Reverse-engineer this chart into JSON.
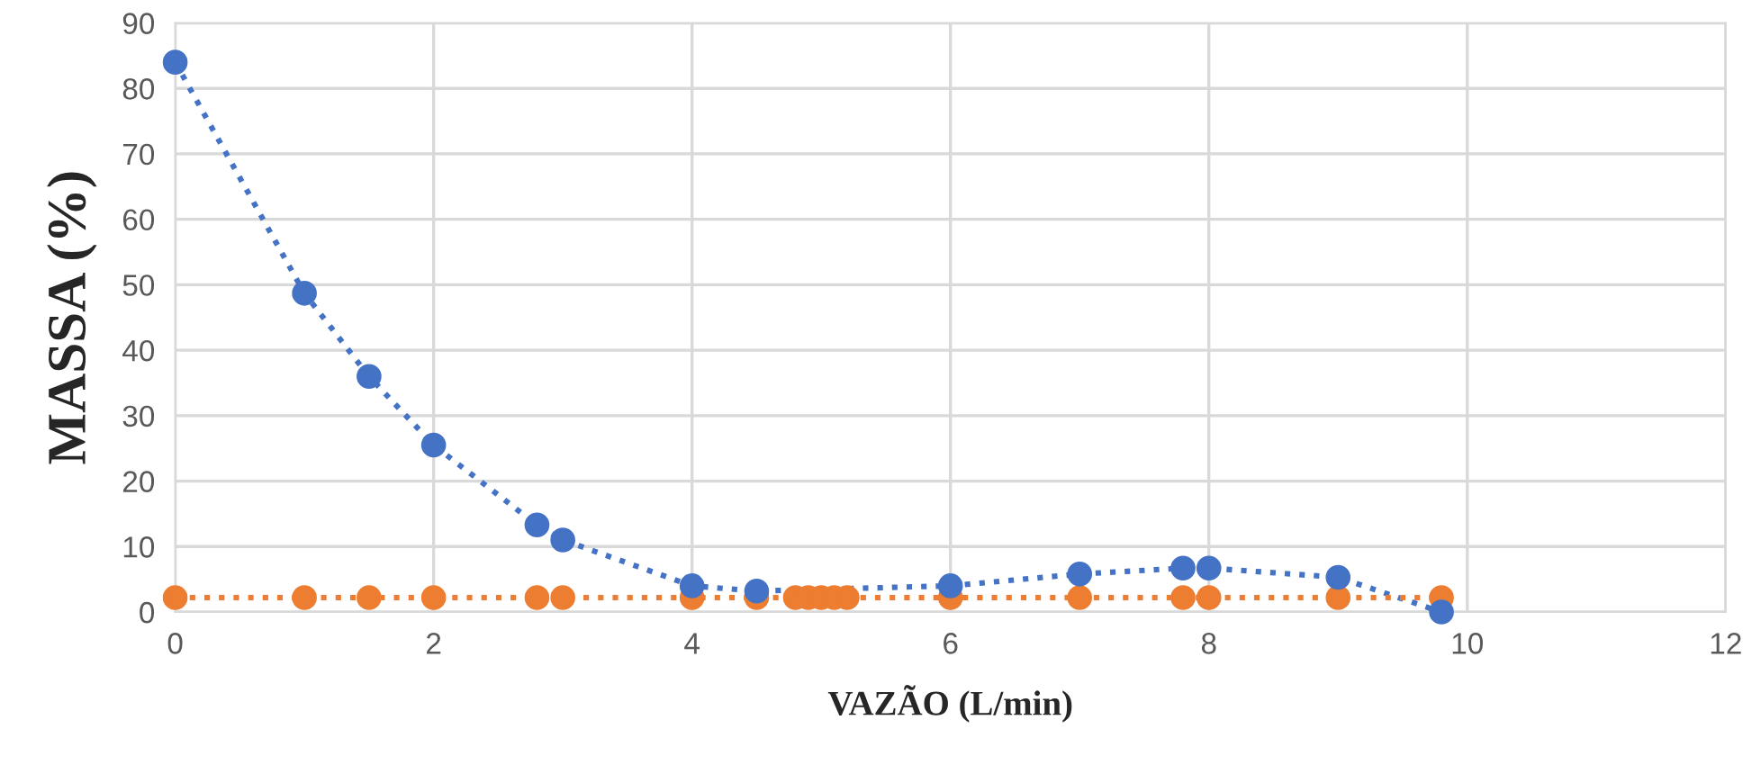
{
  "chart_data": {
    "type": "line",
    "xlabel": "VAZÃO (L/min)",
    "ylabel": "MASSA (%)",
    "xlim": [
      0,
      12
    ],
    "xticks": [
      0,
      2,
      4,
      6,
      8,
      10,
      12
    ],
    "ylim": [
      0,
      90
    ],
    "yticks": [
      0,
      10,
      20,
      30,
      40,
      50,
      60,
      70,
      80,
      90
    ],
    "grid": true,
    "legend": false,
    "marker": "circle",
    "line_style": "dotted",
    "series": [
      {
        "color": "#4472c4",
        "x": [
          0,
          1,
          1.5,
          2,
          2.8,
          3,
          4,
          4.5,
          6,
          7,
          7.8,
          8,
          9,
          9.8
        ],
        "values": [
          84,
          48.7,
          36,
          25.5,
          13.3,
          11,
          4,
          3.2,
          4,
          5.8,
          6.7,
          6.7,
          5.3,
          0
        ]
      },
      {
        "color": "#ed7d31",
        "x": [
          0,
          1,
          1.5,
          2,
          2.8,
          3,
          4,
          4.5,
          4.8,
          4.9,
          5,
          5.1,
          5.2,
          6,
          7,
          7.8,
          8,
          9,
          9.8
        ],
        "values": [
          2.2,
          2.2,
          2.2,
          2.2,
          2.2,
          2.2,
          2.2,
          2.2,
          2.2,
          2.2,
          2.2,
          2.2,
          2.2,
          2.2,
          2.2,
          2.2,
          2.2,
          2.2,
          2.2
        ]
      }
    ]
  }
}
